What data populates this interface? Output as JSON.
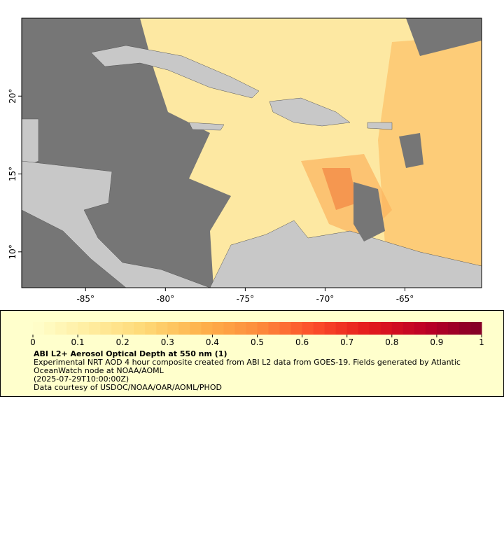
{
  "map": {
    "xlim": [
      -89,
      -60.2
    ],
    "ylim": [
      7.7,
      25
    ],
    "xticks": [
      {
        "value": -85,
        "label": "-85°"
      },
      {
        "value": -80,
        "label": "-80°"
      },
      {
        "value": -75,
        "label": "-75°"
      },
      {
        "value": -70,
        "label": "-70°"
      },
      {
        "value": -65,
        "label": "-65°"
      }
    ],
    "yticks": [
      {
        "value": 10,
        "label": "10°"
      },
      {
        "value": 15,
        "label": "15°"
      },
      {
        "value": 20,
        "label": "20°"
      }
    ]
  },
  "colorbar": {
    "range": [
      0,
      1
    ],
    "ticks": [
      0,
      0.1,
      0.2,
      0.3,
      0.4,
      0.5,
      0.6,
      0.7,
      0.8,
      0.9,
      1
    ],
    "colors": [
      "#ffffcc",
      "#ffeda0",
      "#fed976",
      "#feb24c",
      "#fd8d3c",
      "#fc4e2a",
      "#e31a1c",
      "#bd0026",
      "#800026"
    ]
  },
  "legend": {
    "title": "ABI L2+ Aerosol Optical Depth at 550 nm (1)",
    "description": "Experimental NRT AOD 4 hour composite created from ABI L2 data from GOES-19. Fields generated by Atlantic OceanWatch node at NOAA/AOML",
    "timestamp": "(2025-07-29T10:00:00Z)",
    "credit": "Data courtesy of USDOC/NOAA/OAR/AOML/PHOD"
  }
}
